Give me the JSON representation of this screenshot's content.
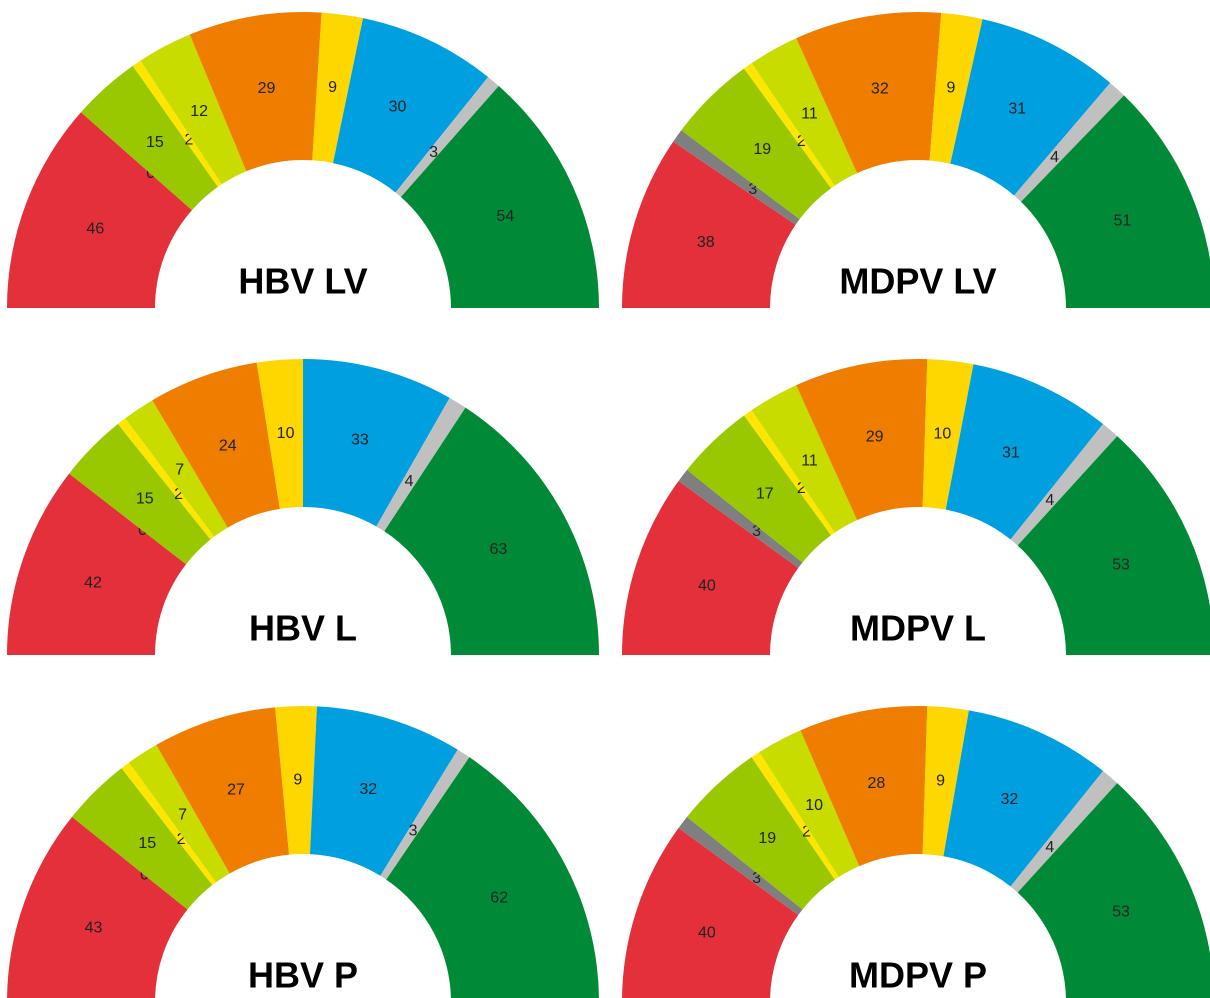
{
  "chart_data": [
    {
      "type": "semidonut",
      "title": "HBV LV",
      "values": [
        46,
        0,
        15,
        2,
        12,
        29,
        9,
        30,
        3,
        54
      ],
      "colors": [
        "#e3303a",
        "#7f7f7f",
        "#99c800",
        "#ffe600",
        "#c8dc00",
        "#ef7d00",
        "#ffd700",
        "#009fdf",
        "#c0c0c0",
        "#008a37"
      ]
    },
    {
      "type": "semidonut",
      "title": "MDPV LV",
      "values": [
        38,
        3,
        19,
        2,
        11,
        32,
        9,
        31,
        4,
        51
      ],
      "colors": [
        "#e3303a",
        "#7f7f7f",
        "#99c800",
        "#ffe600",
        "#c8dc00",
        "#ef7d00",
        "#ffd700",
        "#009fdf",
        "#c0c0c0",
        "#008a37"
      ]
    },
    {
      "type": "semidonut",
      "title": "HBV L",
      "values": [
        42,
        0,
        15,
        2,
        7,
        24,
        10,
        33,
        4,
        63
      ],
      "colors": [
        "#e3303a",
        "#7f7f7f",
        "#99c800",
        "#ffe600",
        "#c8dc00",
        "#ef7d00",
        "#ffd700",
        "#009fdf",
        "#c0c0c0",
        "#008a37"
      ]
    },
    {
      "type": "semidonut",
      "title": "MDPV L",
      "values": [
        40,
        3,
        17,
        2,
        11,
        29,
        10,
        31,
        4,
        53
      ],
      "colors": [
        "#e3303a",
        "#7f7f7f",
        "#99c800",
        "#ffe600",
        "#c8dc00",
        "#ef7d00",
        "#ffd700",
        "#009fdf",
        "#c0c0c0",
        "#008a37"
      ]
    },
    {
      "type": "semidonut",
      "title": "HBV P",
      "values": [
        43,
        0,
        15,
        2,
        7,
        27,
        9,
        32,
        3,
        62
      ],
      "colors": [
        "#e3303a",
        "#7f7f7f",
        "#99c800",
        "#ffe600",
        "#c8dc00",
        "#ef7d00",
        "#ffd700",
        "#009fdf",
        "#c0c0c0",
        "#008a37"
      ]
    },
    {
      "type": "semidonut",
      "title": "MDPV P",
      "values": [
        40,
        3,
        19,
        2,
        10,
        28,
        9,
        32,
        4,
        53
      ],
      "colors": [
        "#e3303a",
        "#7f7f7f",
        "#99c800",
        "#ffe600",
        "#c8dc00",
        "#ef7d00",
        "#ffd700",
        "#009fdf",
        "#c0c0c0",
        "#008a37"
      ]
    }
  ]
}
